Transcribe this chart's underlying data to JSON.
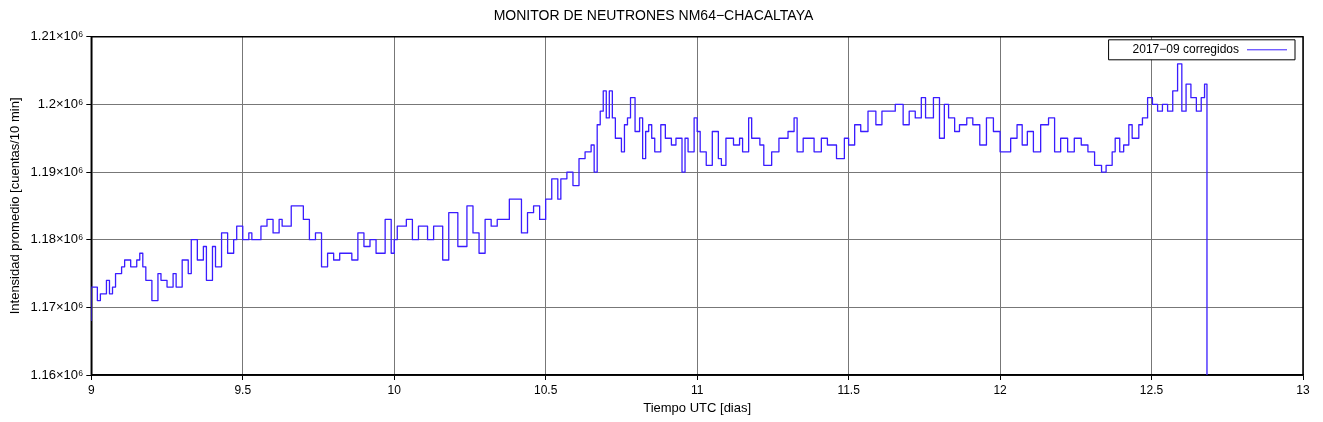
{
  "chart_data": {
    "type": "step",
    "title": "MONITOR DE NEUTRONES NM64−CHACALTAYA",
    "xlabel": "Tiempo UTC [dias]",
    "ylabel": "Intensidad promedio [cuentas/10 min]",
    "xlim": [
      9,
      13
    ],
    "xticks": [
      9,
      9.5,
      10,
      10.5,
      11,
      11.5,
      12,
      12.5,
      13
    ],
    "ylim": [
      1160000,
      1210000
    ],
    "yticks": [
      {
        "value": 1160000,
        "label": "1.16×10⁶"
      },
      {
        "value": 1170000,
        "label": "1.17×10⁶"
      },
      {
        "value": 1180000,
        "label": "1.18×10⁶"
      },
      {
        "value": 1190000,
        "label": "1.19×10⁶"
      },
      {
        "value": 1200000,
        "label": "1.2×10⁶"
      },
      {
        "value": 1210000,
        "label": "1.21×10⁶"
      }
    ],
    "grid": true,
    "legend": "top right",
    "series": [
      {
        "name": "2017−09 corregidos",
        "color": "#3a1cff",
        "x": [
          9.0,
          9.02,
          9.03,
          9.05,
          9.06,
          9.07,
          9.08,
          9.1,
          9.11,
          9.13,
          9.15,
          9.16,
          9.17,
          9.18,
          9.2,
          9.22,
          9.23,
          9.25,
          9.27,
          9.28,
          9.3,
          9.32,
          9.33,
          9.35,
          9.37,
          9.38,
          9.4,
          9.41,
          9.43,
          9.45,
          9.47,
          9.48,
          9.5,
          9.52,
          9.53,
          9.56,
          9.58,
          9.6,
          9.62,
          9.63,
          9.66,
          9.7,
          9.72,
          9.74,
          9.76,
          9.78,
          9.8,
          9.82,
          9.86,
          9.88,
          9.9,
          9.92,
          9.94,
          9.97,
          9.99,
          10.0,
          10.01,
          10.04,
          10.06,
          10.08,
          10.11,
          10.13,
          10.16,
          10.18,
          10.21,
          10.24,
          10.26,
          10.28,
          10.3,
          10.32,
          10.34,
          10.38,
          10.42,
          10.44,
          10.46,
          10.48,
          10.5,
          10.52,
          10.54,
          10.55,
          10.57,
          10.59,
          10.61,
          10.63,
          10.65,
          10.66,
          10.67,
          10.68,
          10.69,
          10.7,
          10.71,
          10.72,
          10.73,
          10.75,
          10.76,
          10.77,
          10.78,
          10.795,
          10.81,
          10.82,
          10.83,
          10.84,
          10.85,
          10.86,
          10.88,
          10.895,
          10.915,
          10.93,
          10.95,
          10.96,
          10.97,
          10.99,
          11.0,
          11.01,
          11.03,
          11.05,
          11.07,
          11.08,
          11.095,
          11.12,
          11.14,
          11.15,
          11.17,
          11.18,
          11.207,
          11.22,
          11.246,
          11.27,
          11.3,
          11.32,
          11.33,
          11.35,
          11.386,
          11.41,
          11.43,
          11.46,
          11.486,
          11.5,
          11.52,
          11.54,
          11.564,
          11.59,
          11.61,
          11.63,
          11.654,
          11.68,
          11.7,
          11.72,
          11.74,
          11.754,
          11.78,
          11.8,
          11.816,
          11.83,
          11.85,
          11.866,
          11.89,
          11.91,
          11.933,
          11.955,
          11.978,
          12.0,
          12.017,
          12.035,
          12.056,
          12.073,
          12.09,
          12.11,
          12.134,
          12.16,
          12.18,
          12.2,
          12.223,
          12.245,
          12.268,
          12.29,
          12.312,
          12.335,
          12.35,
          12.37,
          12.38,
          12.395,
          12.408,
          12.425,
          12.436,
          12.458,
          12.47,
          12.487,
          12.503,
          12.52,
          12.536,
          12.553,
          12.57,
          12.586,
          12.6,
          12.614,
          12.63,
          12.648,
          12.664,
          12.675,
          12.683,
          12.684
        ],
        "values": [
          1168000,
          1173000,
          1171000,
          1172000,
          1174000,
          1172000,
          1173000,
          1175000,
          1176000,
          1177000,
          1176000,
          1177000,
          1178000,
          1176000,
          1174000,
          1171000,
          1175000,
          1174000,
          1173000,
          1175000,
          1173000,
          1177000,
          1175000,
          1180000,
          1177000,
          1179000,
          1174000,
          1179000,
          1176000,
          1181000,
          1178000,
          1180000,
          1182000,
          1180000,
          1181000,
          1180000,
          1182000,
          1183000,
          1181000,
          1183000,
          1182000,
          1185000,
          1183000,
          1180000,
          1181000,
          1176000,
          1178000,
          1177000,
          1178000,
          1177000,
          1181000,
          1179000,
          1180000,
          1178000,
          1183000,
          1178000,
          1180000,
          1182000,
          1183000,
          1180000,
          1182000,
          1180000,
          1182000,
          1177000,
          1184000,
          1179000,
          1185000,
          1181000,
          1178000,
          1183000,
          1182000,
          1183000,
          1186000,
          1181000,
          1184000,
          1185000,
          1183000,
          1186000,
          1189000,
          1186000,
          1189000,
          1190000,
          1188000,
          1192000,
          1193000,
          1194000,
          1190000,
          1197000,
          1199000,
          1202000,
          1198000,
          1202000,
          1198000,
          1195000,
          1193000,
          1197000,
          1198000,
          1201000,
          1196000,
          1198000,
          1192000,
          1196000,
          1197000,
          1195000,
          1193000,
          1197000,
          1195000,
          1194000,
          1195000,
          1190000,
          1195000,
          1193000,
          1198000,
          1196000,
          1193000,
          1191000,
          1196000,
          1192000,
          1191000,
          1195000,
          1194000,
          1195000,
          1193000,
          1198000,
          1195000,
          1194000,
          1191000,
          1193000,
          1195000,
          1196000,
          1198000,
          1193000,
          1195000,
          1193000,
          1195000,
          1194000,
          1192000,
          1195000,
          1194000,
          1197000,
          1196000,
          1199000,
          1197000,
          1199000,
          1199000,
          1200000,
          1197000,
          1199000,
          1198000,
          1201000,
          1198000,
          1201000,
          1195000,
          1200000,
          1198000,
          1196000,
          1197000,
          1198000,
          1197000,
          1194000,
          1198000,
          1196000,
          1193000,
          1193000,
          1195000,
          1197000,
          1194000,
          1196000,
          1193000,
          1197000,
          1198000,
          1193000,
          1195000,
          1193000,
          1195000,
          1194000,
          1193000,
          1191000,
          1190000,
          1191000,
          1193000,
          1195000,
          1193000,
          1194000,
          1197000,
          1195000,
          1197000,
          1198000,
          1201000,
          1200000,
          1199000,
          1200000,
          1199000,
          1202000,
          1206000,
          1199000,
          1203000,
          1201000,
          1199000,
          1201000,
          1203000,
          1160000
        ]
      }
    ]
  }
}
